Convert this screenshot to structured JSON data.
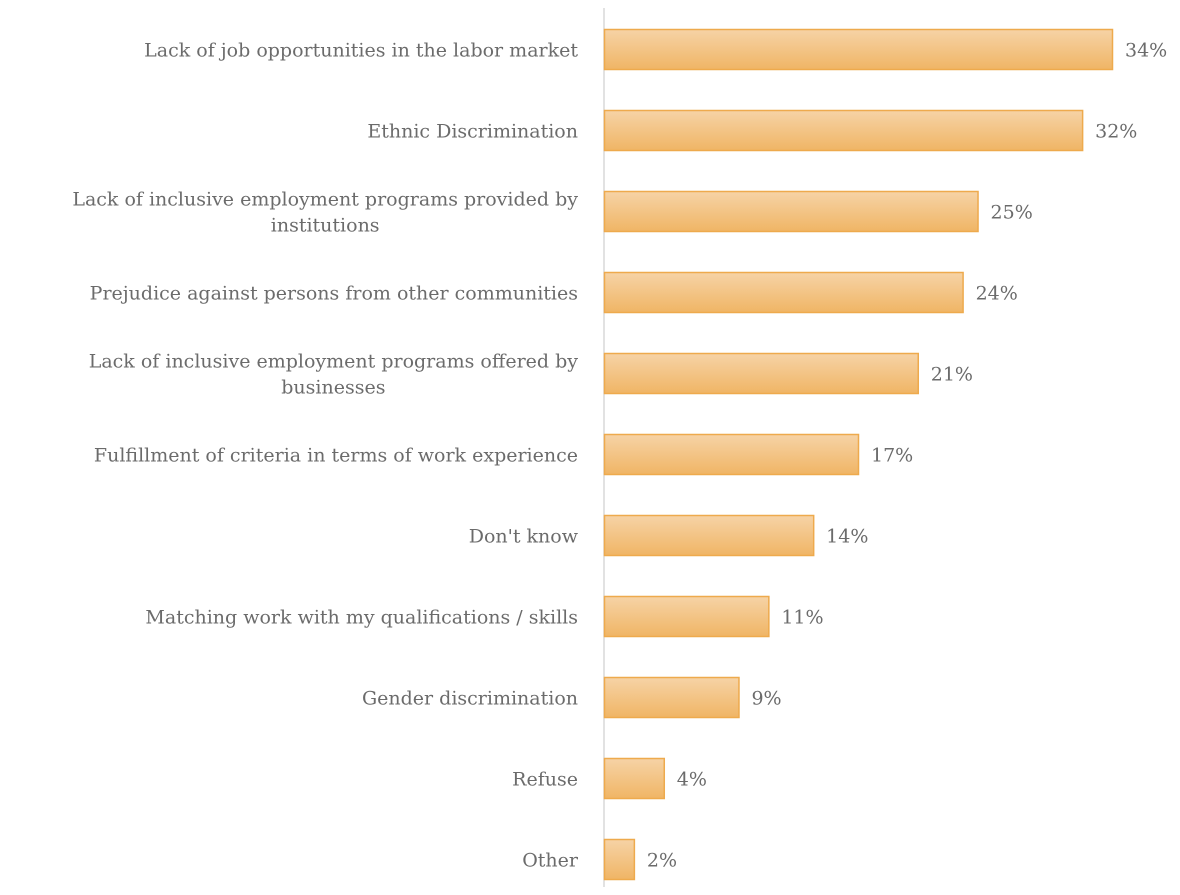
{
  "chart_data": {
    "type": "bar",
    "orientation": "horizontal",
    "categories": [
      "Lack of job opportunities in the labor market",
      "Ethnic Discrimination",
      "Lack of inclusive employment programs provided by institutions",
      "Prejudice against persons from other communities",
      "Lack of inclusive employment programs offered by businesses",
      "Fulfillment of criteria in terms of work experience",
      "Don't know",
      "Matching work with my qualifications / skills",
      "Gender discrimination",
      "Refuse",
      "Other"
    ],
    "category_lines": [
      [
        "Lack of job opportunities in the labor market"
      ],
      [
        "Ethnic Discrimination"
      ],
      [
        "Lack of inclusive employment programs provided by",
        "institutions"
      ],
      [
        "Prejudice against persons from other communities"
      ],
      [
        "Lack of inclusive employment programs offered by",
        "businesses"
      ],
      [
        "Fulfillment of criteria in terms of work experience"
      ],
      [
        "Don't know"
      ],
      [
        "Matching work with my qualifications / skills"
      ],
      [
        "Gender discrimination"
      ],
      [
        "Refuse"
      ],
      [
        "Other"
      ]
    ],
    "values": [
      34,
      32,
      25,
      24,
      21,
      17,
      14,
      11,
      9,
      4,
      2
    ],
    "value_labels": [
      "34%",
      "32%",
      "25%",
      "24%",
      "21%",
      "17%",
      "14%",
      "11%",
      "9%",
      "4%",
      "2%"
    ],
    "title": "",
    "xlabel": "",
    "ylabel": "",
    "xlim": [
      0,
      34
    ],
    "grid": false,
    "legend": "none",
    "colors": {
      "bar_fill_top": "#f6d3a6",
      "bar_fill_bottom": "#f0b565",
      "bar_stroke": "#eeaa4d",
      "axis_line": "#d9d9d9",
      "text": "#6b6b6b"
    }
  }
}
